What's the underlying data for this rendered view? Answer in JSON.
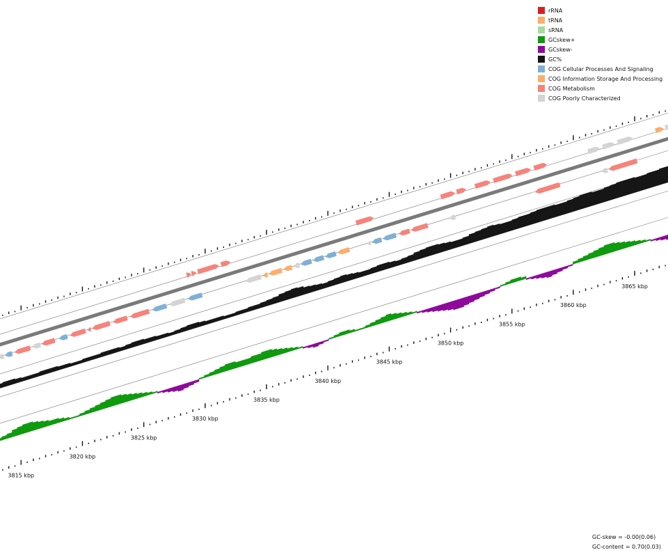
{
  "legend": [
    {
      "label": "rRNA",
      "color": "#d62020"
    },
    {
      "label": "tRNA",
      "color": "#fbae6b"
    },
    {
      "label": "sRNA",
      "color": "#a6dba0"
    },
    {
      "label": "GCskew+",
      "color": "#0f9a0f"
    },
    {
      "label": "GCskew-",
      "color": "#8e0a9b"
    },
    {
      "label": "GC%",
      "color": "#161616"
    },
    {
      "label": "COG Cellular Processes And Signaling",
      "color": "#7fb0d6"
    },
    {
      "label": "COG Information Storage And Processing",
      "color": "#fbae6b"
    },
    {
      "label": "COG Metabolism",
      "color": "#f6837a"
    },
    {
      "label": "COG Poorly Characterized",
      "color": "#d4d4d4"
    }
  ],
  "stats": {
    "gc_skew": "GC-skew = -0.00(0.06)",
    "gc_content": "GC-content = 0.70(0.03)"
  },
  "axis": {
    "start_kbp": 3813,
    "end_kbp": 3868,
    "labels": [
      {
        "kbp": 3815,
        "text": "3815 kbp"
      },
      {
        "kbp": 3820,
        "text": "3820 kbp"
      },
      {
        "kbp": 3825,
        "text": "3825 kbp"
      },
      {
        "kbp": 3830,
        "text": "3830 kbp"
      },
      {
        "kbp": 3835,
        "text": "3835 kbp"
      },
      {
        "kbp": 3840,
        "text": "3840 kbp"
      },
      {
        "kbp": 3845,
        "text": "3845 kbp"
      },
      {
        "kbp": 3850,
        "text": "3850 kbp"
      },
      {
        "kbp": 3855,
        "text": "3855 kbp"
      },
      {
        "kbp": 3860,
        "text": "3860 kbp"
      },
      {
        "kbp": 3865,
        "text": "3865 kbp"
      }
    ]
  },
  "genes_forward": [
    {
      "start": 3828.5,
      "end": 3828.9,
      "cog": "COG Metabolism"
    },
    {
      "start": 3828.9,
      "end": 3829.3,
      "cog": "COG Metabolism"
    },
    {
      "start": 3829.4,
      "end": 3831.2,
      "cog": "COG Metabolism"
    },
    {
      "start": 3831.3,
      "end": 3832.1,
      "cog": "COG Metabolism"
    },
    {
      "start": 3842.3,
      "end": 3843.8,
      "cog": "COG Metabolism"
    },
    {
      "start": 3849.2,
      "end": 3850.4,
      "cog": "COG Metabolism"
    },
    {
      "start": 3850.5,
      "end": 3851.3,
      "cog": "COG Metabolism"
    },
    {
      "start": 3852.0,
      "end": 3853.3,
      "cog": "COG Metabolism"
    },
    {
      "start": 3853.5,
      "end": 3855.1,
      "cog": "COG Metabolism"
    },
    {
      "start": 3855.3,
      "end": 3856.6,
      "cog": "COG Metabolism"
    },
    {
      "start": 3856.8,
      "end": 3857.9,
      "cog": "COG Metabolism"
    },
    {
      "start": 3861.2,
      "end": 3862.2,
      "cog": "COG Poorly Characterized"
    },
    {
      "start": 3862.4,
      "end": 3863.4,
      "cog": "COG Poorly Characterized"
    },
    {
      "start": 3863.6,
      "end": 3864.9,
      "cog": "COG Poorly Characterized"
    },
    {
      "start": 3866.7,
      "end": 3867.4,
      "cog": "COG Information Storage And Processing"
    },
    {
      "start": 3867.5,
      "end": 3868.1,
      "cog": "COG Poorly Characterized"
    }
  ],
  "genes_reverse": [
    {
      "start": 3813.1,
      "end": 3813.6,
      "cog": "COG Poorly Characterized"
    },
    {
      "start": 3813.7,
      "end": 3814.3,
      "cog": "COG Cellular Processes And Signaling"
    },
    {
      "start": 3814.5,
      "end": 3815.8,
      "cog": "COG Metabolism"
    },
    {
      "start": 3815.9,
      "end": 3816.6,
      "cog": "COG Poorly Characterized"
    },
    {
      "start": 3816.7,
      "end": 3817.8,
      "cog": "COG Metabolism"
    },
    {
      "start": 3818.1,
      "end": 3818.8,
      "cog": "COG Cellular Processes And Signaling"
    },
    {
      "start": 3819.0,
      "end": 3820.3,
      "cog": "COG Metabolism"
    },
    {
      "start": 3820.4,
      "end": 3820.7,
      "cog": "COG Metabolism"
    },
    {
      "start": 3820.8,
      "end": 3822.3,
      "cog": "COG Metabolism"
    },
    {
      "start": 3822.5,
      "end": 3823.7,
      "cog": "COG Metabolism"
    },
    {
      "start": 3823.9,
      "end": 3825.5,
      "cog": "COG Metabolism"
    },
    {
      "start": 3825.7,
      "end": 3826.9,
      "cog": "COG Cellular Processes And Signaling"
    },
    {
      "start": 3827.1,
      "end": 3828.4,
      "cog": "COG Poorly Characterized"
    },
    {
      "start": 3828.6,
      "end": 3829.8,
      "cog": "COG Cellular Processes And Signaling"
    },
    {
      "start": 3833.3,
      "end": 3834.6,
      "cog": "COG Poorly Characterized"
    },
    {
      "start": 3834.7,
      "end": 3835.1,
      "cog": "COG Information Storage And Processing"
    },
    {
      "start": 3835.2,
      "end": 3836.3,
      "cog": "COG Information Storage And Processing"
    },
    {
      "start": 3836.4,
      "end": 3837.1,
      "cog": "COG Information Storage And Processing"
    },
    {
      "start": 3837.2,
      "end": 3837.7,
      "cog": "COG Poorly Characterized"
    },
    {
      "start": 3837.8,
      "end": 3838.7,
      "cog": "COG Cellular Processes And Signaling"
    },
    {
      "start": 3838.8,
      "end": 3839.7,
      "cog": "COG Cellular Processes And Signaling"
    },
    {
      "start": 3839.8,
      "end": 3840.7,
      "cog": "COG Cellular Processes And Signaling"
    },
    {
      "start": 3840.8,
      "end": 3841.8,
      "cog": "COG Information Storage And Processing"
    },
    {
      "start": 3843.2,
      "end": 3843.5,
      "cog": "COG Poorly Characterized"
    },
    {
      "start": 3843.6,
      "end": 3844.4,
      "cog": "COG Cellular Processes And Signaling"
    },
    {
      "start": 3844.5,
      "end": 3845.6,
      "cog": "COG Cellular Processes And Signaling"
    },
    {
      "start": 3845.8,
      "end": 3846.7,
      "cog": "COG Metabolism"
    },
    {
      "start": 3846.8,
      "end": 3848.2,
      "cog": "COG Metabolism"
    },
    {
      "start": 3849.9,
      "end": 3850.4,
      "cog": "COG Poorly Characterized"
    },
    {
      "start": 3856.9,
      "end": 3859.0,
      "cog": "COG Metabolism"
    },
    {
      "start": 3862.3,
      "end": 3862.8,
      "cog": "COG Poorly Characterized"
    },
    {
      "start": 3862.9,
      "end": 3865.3,
      "cog": "COG Metabolism"
    }
  ],
  "gc_content": [
    1,
    2,
    2,
    1,
    0,
    0,
    0,
    1,
    1,
    1,
    0,
    0,
    -1,
    -1,
    0,
    0,
    0,
    1,
    1,
    1,
    0,
    1,
    2,
    2,
    1,
    1,
    0,
    0,
    -1,
    0,
    1,
    2,
    2,
    1,
    0,
    0,
    0,
    -1,
    -1,
    0,
    0,
    1,
    1,
    2,
    3,
    4,
    6,
    7,
    8,
    7,
    5,
    4,
    3,
    2,
    3,
    4,
    5,
    4,
    3,
    2,
    2,
    3,
    4,
    4,
    3,
    2,
    3,
    4,
    6,
    7,
    8,
    8,
    7,
    6,
    5,
    5,
    6,
    8,
    9,
    10,
    11,
    10,
    9,
    9,
    10,
    11,
    11,
    12,
    13,
    13,
    13,
    12,
    12,
    13,
    14,
    15,
    15,
    14,
    14,
    15,
    16,
    17,
    17,
    17,
    16,
    16,
    17,
    17,
    18,
    18
  ],
  "gc_skew": [
    2,
    3,
    4,
    6,
    7,
    8,
    8,
    7,
    6,
    5,
    4,
    4,
    3,
    2,
    1,
    1,
    2,
    3,
    4,
    5,
    6,
    7,
    8,
    8,
    7,
    6,
    5,
    4,
    3,
    2,
    1,
    -1,
    -2,
    -3,
    -4,
    -5,
    -4,
    -3,
    -2,
    1,
    2,
    3,
    4,
    5,
    6,
    6,
    5,
    5,
    5,
    6,
    6,
    7,
    7,
    6,
    5,
    4,
    3,
    2,
    1,
    -1,
    -2,
    -3,
    -2,
    -1,
    1,
    2,
    3,
    3,
    2,
    1,
    1,
    2,
    3,
    4,
    5,
    6,
    5,
    4,
    3,
    2,
    1,
    -1,
    -2,
    -3,
    -4,
    -5,
    -6,
    -7,
    -8,
    -8,
    -7,
    -6,
    -5,
    -4,
    -3,
    -2,
    -1,
    1,
    2,
    3,
    3,
    2,
    -1,
    -2,
    -3,
    -4,
    -5,
    -4,
    -3,
    -2,
    -1,
    2,
    3,
    4,
    5,
    6,
    7,
    8,
    8,
    7,
    6,
    5,
    4,
    3,
    2,
    1,
    -1,
    -2,
    -3,
    -4
  ]
}
